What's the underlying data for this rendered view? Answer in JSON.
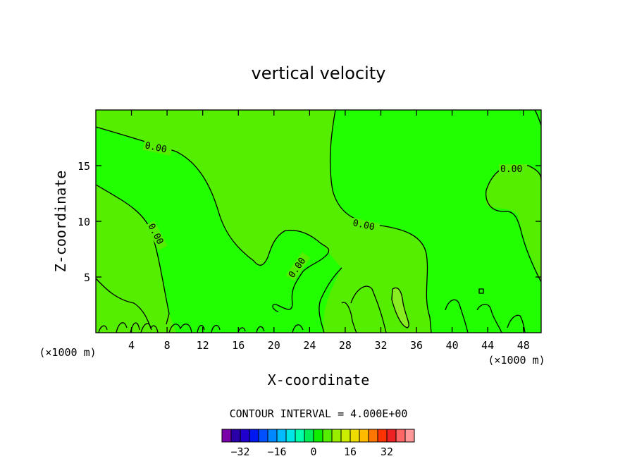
{
  "chart_data": {
    "type": "heatmap",
    "title": "vertical velocity",
    "xlabel": "X-coordinate",
    "ylabel": "Z-coordinate",
    "x_unit_left": "(×1000 m)",
    "x_unit_right": "(×1000 m)",
    "xlim": [
      0,
      50
    ],
    "ylim": [
      0,
      20
    ],
    "x_ticks": [
      4,
      8,
      12,
      16,
      20,
      24,
      28,
      32,
      36,
      40,
      44,
      48
    ],
    "y_ticks": [
      5,
      10,
      15
    ],
    "contour_labels": [
      "0.00",
      "0.00",
      "0.00",
      "0.00",
      "0.00"
    ],
    "regions": [
      {
        "name": "near-zero-negative",
        "color": "#22ff00"
      },
      {
        "name": "near-zero-positive",
        "color": "#55ee00"
      },
      {
        "name": "weak-positive",
        "color": "#88ee22"
      }
    ],
    "contour_interval_text": "CONTOUR INTERVAL = 4.000E+00",
    "colorbar": {
      "colors": [
        "#7a00aa",
        "#2a00a8",
        "#2000cc",
        "#0018f0",
        "#0050ff",
        "#0088ff",
        "#00bbff",
        "#00e5e5",
        "#00ffaa",
        "#00ee55",
        "#10ee00",
        "#55ee00",
        "#99ee00",
        "#ccee00",
        "#eedd00",
        "#ffbb00",
        "#ff7700",
        "#ff3300",
        "#ee2222",
        "#ff6666",
        "#ff9999"
      ],
      "tick_labels": [
        "-32",
        "-16",
        "0",
        "16",
        "32"
      ],
      "tick_values": [
        -32,
        -16,
        0,
        16,
        32
      ],
      "range": [
        -40,
        44
      ]
    }
  }
}
